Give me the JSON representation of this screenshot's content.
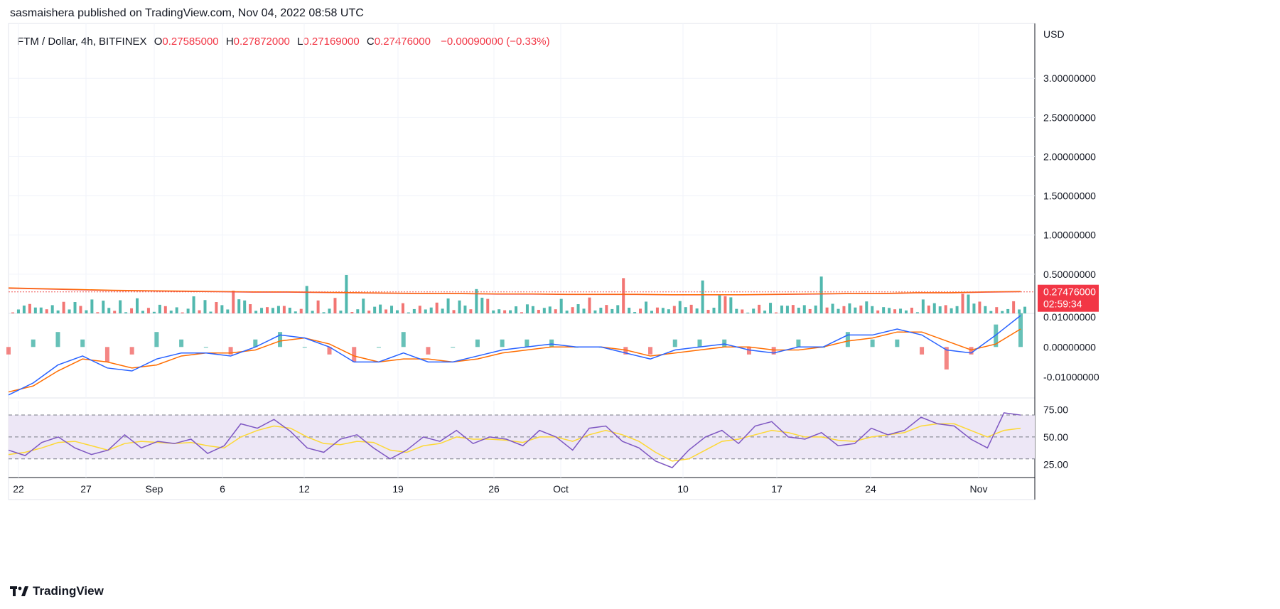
{
  "header": {
    "published": "sasmaishera published on TradingView.com, Nov 04, 2022 08:58 UTC"
  },
  "legend": {
    "symbol": "FTM / Dollar, 4h, BITFINEX",
    "o_label": "O",
    "o_value": "0.27585000",
    "h_label": "H",
    "h_value": "0.27872000",
    "l_label": "L",
    "l_value": "0.27169000",
    "c_label": "C",
    "c_value": "0.27476000",
    "change": "−0.00090000 (−0.33%)"
  },
  "price_tag": {
    "value": "0.27476000",
    "countdown": "02:59:34",
    "color": "#f23645"
  },
  "footer": {
    "brand": "TradingView",
    "logo_icon": "tradingview-logo-icon"
  },
  "colors": {
    "up": "#26a69a",
    "down": "#ef5350",
    "macd": "#2962ff",
    "signal": "#ff6d00",
    "rsi": "#7e57c2",
    "rsi_ma": "#fdd835",
    "rsi_band": "#ede7f6"
  },
  "chart_data": [
    {
      "type": "bar",
      "title": "FTM / Dollar, 4h, BITFINEX",
      "currency_label": "USD",
      "ylim": [
        0,
        3.7
      ],
      "y_ticks": [
        "3.00000000",
        "2.50000000",
        "2.00000000",
        "1.50000000",
        "1.00000000",
        "0.50000000"
      ],
      "y_tick_values": [
        3.0,
        2.5,
        2.0,
        1.5,
        1.0,
        0.5
      ],
      "x_tick_labels": [
        "22",
        "27",
        "Sep",
        "6",
        "12",
        "19",
        "26",
        "Oct",
        "10",
        "17",
        "24",
        "Nov"
      ],
      "last_price": 0.27476,
      "series": [
        {
          "name": "Price",
          "type": "line",
          "values": [
            0.32,
            0.31,
            0.3,
            0.29,
            0.285,
            0.28,
            0.275,
            0.27,
            0.27,
            0.265,
            0.26,
            0.255,
            0.25,
            0.25,
            0.245,
            0.245,
            0.24,
            0.24,
            0.24,
            0.235,
            0.235,
            0.235,
            0.24,
            0.245,
            0.25,
            0.25,
            0.26,
            0.26,
            0.27,
            0.275
          ]
        },
        {
          "name": "Volume",
          "type": "bar",
          "values": [
            0.05,
            0.04,
            0.08,
            0.12,
            0.06,
            0.3,
            0.05,
            0.1,
            0.07,
            0.35,
            0.05,
            0.42,
            0.06,
            0.08,
            0.47,
            0.06,
            0.49,
            0.07,
            0.05,
            0.43,
            0.06,
            0.1,
            0.45,
            0.05,
            0.07,
            0.08,
            0.28,
            0.05,
            0.06,
            0.07,
            0.05,
            0.06,
            0.55,
            0.08,
            0.44,
            0.09,
            0.42,
            0.1,
            0.05,
            0.92,
            0.72,
            0.5,
            0.15
          ]
        }
      ]
    },
    {
      "type": "line",
      "title": "MACD",
      "y_ticks": [
        "0.01000000",
        "0.00000000",
        "-0.01000000"
      ],
      "ylim": [
        -0.017,
        0.0105
      ],
      "series": [
        {
          "name": "MACD",
          "values": [
            -0.016,
            -0.012,
            -0.006,
            -0.003,
            -0.007,
            -0.008,
            -0.004,
            -0.002,
            -0.002,
            -0.003,
            0.0,
            0.004,
            0.003,
            0.0,
            -0.005,
            -0.005,
            -0.002,
            -0.005,
            -0.005,
            -0.003,
            -0.001,
            0.0,
            0.001,
            0.0,
            0.0,
            -0.002,
            -0.004,
            -0.001,
            0.0,
            0.001,
            -0.001,
            -0.002,
            0.0,
            0.0,
            0.004,
            0.004,
            0.006,
            0.004,
            -0.001,
            -0.002,
            0.004,
            0.0105
          ]
        },
        {
          "name": "Signal",
          "values": [
            -0.015,
            -0.013,
            -0.008,
            -0.004,
            -0.005,
            -0.007,
            -0.006,
            -0.003,
            -0.002,
            -0.002,
            -0.001,
            0.002,
            0.003,
            0.001,
            -0.003,
            -0.005,
            -0.004,
            -0.004,
            -0.005,
            -0.004,
            -0.002,
            -0.001,
            0.0,
            0.0,
            0.0,
            -0.001,
            -0.003,
            -0.002,
            -0.001,
            0.0,
            0.0,
            -0.001,
            -0.001,
            0.0,
            0.002,
            0.003,
            0.005,
            0.005,
            0.002,
            -0.001,
            0.001,
            0.006
          ]
        }
      ]
    },
    {
      "type": "line",
      "title": "RSI",
      "y_ticks": [
        "75.00",
        "50.00",
        "25.00"
      ],
      "ylim": [
        13,
        83
      ],
      "bands": [
        30,
        70
      ],
      "series": [
        {
          "name": "RSI",
          "values": [
            38,
            33,
            45,
            50,
            40,
            34,
            38,
            52,
            40,
            46,
            44,
            48,
            35,
            42,
            62,
            58,
            66,
            55,
            40,
            36,
            48,
            52,
            40,
            30,
            38,
            50,
            46,
            56,
            44,
            50,
            48,
            42,
            56,
            50,
            38,
            58,
            60,
            46,
            40,
            28,
            22,
            38,
            50,
            56,
            44,
            60,
            64,
            50,
            48,
            54,
            42,
            44,
            58,
            52,
            56,
            68,
            62,
            60,
            48,
            40,
            72,
            70
          ]
        },
        {
          "name": "RSI-MA",
          "values": [
            34,
            36,
            40,
            45,
            46,
            42,
            38,
            44,
            46,
            45,
            44,
            45,
            42,
            40,
            50,
            56,
            60,
            58,
            50,
            44,
            43,
            46,
            45,
            38,
            36,
            42,
            44,
            50,
            48,
            48,
            47,
            45,
            50,
            50,
            46,
            52,
            56,
            52,
            46,
            36,
            28,
            30,
            38,
            46,
            48,
            52,
            56,
            54,
            50,
            50,
            47,
            46,
            50,
            52,
            54,
            60,
            62,
            62,
            56,
            50,
            56,
            58
          ]
        }
      ]
    }
  ]
}
